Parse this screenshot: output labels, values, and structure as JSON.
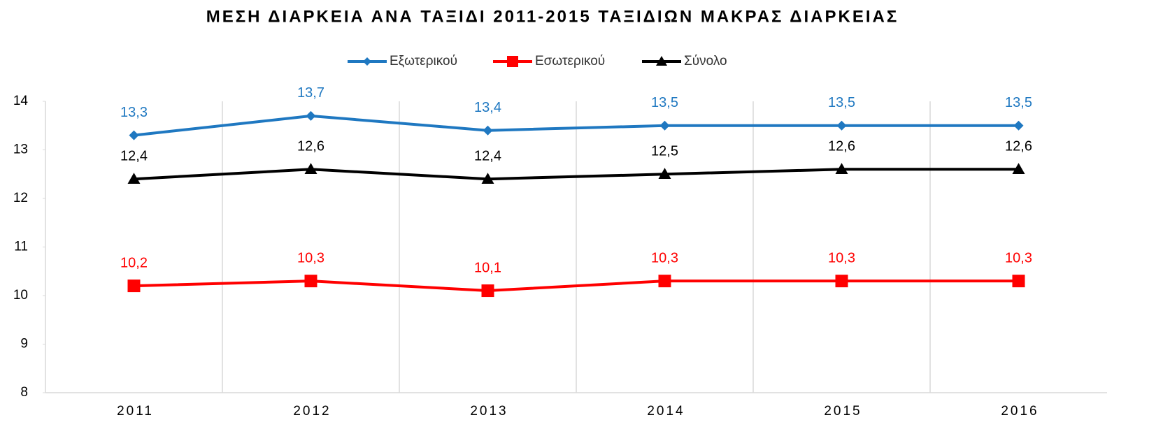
{
  "chart_data": {
    "type": "line",
    "title": "ΜΕΣΗ ΔΙΑΡΚΕΙΑ ΑΝΑ ΤΑΞΙΔΙ 2011-2015 ΤΑΞΙΔΙΩΝ ΜΑΚΡΑΣ ΔΙΑΡΚΕΙΑΣ",
    "categories": [
      "2011",
      "2012",
      "2013",
      "2014",
      "2015",
      "2016"
    ],
    "series": [
      {
        "name": "Εξωτερικού",
        "color": "#1f78c1",
        "marker": "diamond",
        "values": [
          13.3,
          13.7,
          13.4,
          13.5,
          13.5,
          13.5
        ],
        "value_labels": [
          "13,3",
          "13,7",
          "13,4",
          "13,5",
          "13,5",
          "13,5"
        ]
      },
      {
        "name": "Εσωτερικού",
        "color": "#ff0000",
        "marker": "square",
        "values": [
          10.2,
          10.3,
          10.1,
          10.3,
          10.3,
          10.3
        ],
        "value_labels": [
          "10,2",
          "10,3",
          "10,1",
          "10,3",
          "10,3",
          "10,3"
        ]
      },
      {
        "name": "Σύνολο",
        "color": "#000000",
        "marker": "triangle",
        "values": [
          12.4,
          12.6,
          12.4,
          12.5,
          12.6,
          12.6
        ],
        "value_labels": [
          "12,4",
          "12,6",
          "12,4",
          "12,5",
          "12,6",
          "12,6"
        ]
      }
    ],
    "ylim": [
      8,
      14
    ],
    "yticks": [
      8,
      9,
      10,
      11,
      12,
      13,
      14
    ],
    "legend": "top"
  }
}
